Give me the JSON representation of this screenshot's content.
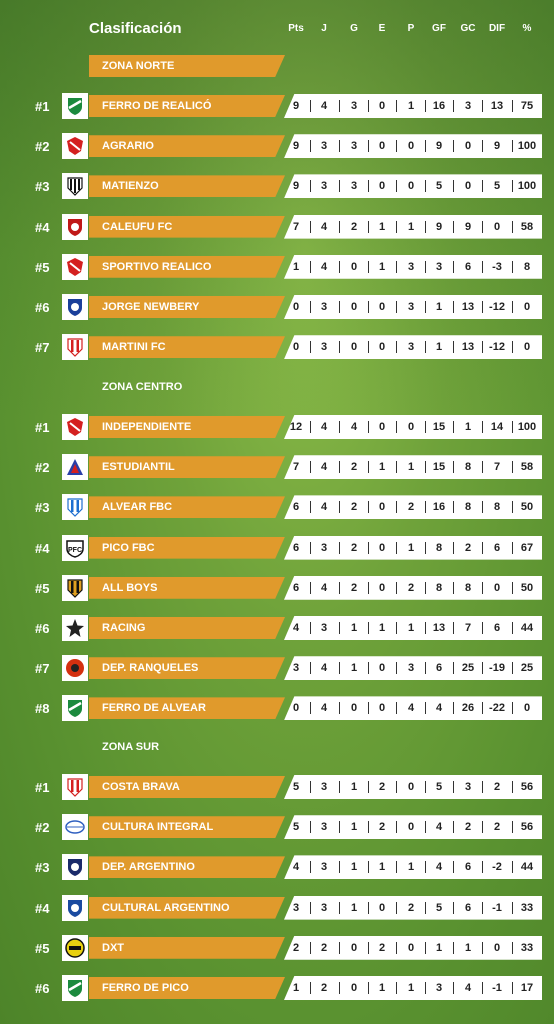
{
  "title": "Clasificación",
  "columns": [
    "Pts",
    "J",
    "G",
    "E",
    "P",
    "GF",
    "GC",
    "DIF",
    "%"
  ],
  "zones": [
    {
      "name": "ZONA NORTE",
      "teams": [
        {
          "rank": "#1",
          "name": "FERRO DE REALICÓ",
          "stats": [
            "9",
            "4",
            "3",
            "0",
            "1",
            "16",
            "3",
            "13",
            "75"
          ],
          "logo": "ferro-crest",
          "logo_color": "#1b8a3e"
        },
        {
          "rank": "#2",
          "name": "AGRARIO",
          "stats": [
            "9",
            "3",
            "3",
            "0",
            "0",
            "9",
            "0",
            "9",
            "100"
          ],
          "logo": "agrario-crest",
          "logo_color": "#d42020"
        },
        {
          "rank": "#3",
          "name": "MATIENZO",
          "stats": [
            "9",
            "3",
            "3",
            "0",
            "0",
            "5",
            "0",
            "5",
            "100"
          ],
          "logo": "matienzo-crest",
          "logo_color": "#111111"
        },
        {
          "rank": "#4",
          "name": "CALEUFU FC",
          "stats": [
            "7",
            "4",
            "2",
            "1",
            "1",
            "9",
            "9",
            "0",
            "58"
          ],
          "logo": "caleufu-crest",
          "logo_color": "#c01818"
        },
        {
          "rank": "#5",
          "name": "SPORTIVO REALICO",
          "stats": [
            "1",
            "4",
            "0",
            "1",
            "3",
            "3",
            "6",
            "-3",
            "8"
          ],
          "logo": "sportivo-crest",
          "logo_color": "#d42020"
        },
        {
          "rank": "#6",
          "name": "JORGE NEWBERY",
          "stats": [
            "0",
            "3",
            "0",
            "0",
            "3",
            "1",
            "13",
            "-12",
            "0"
          ],
          "logo": "newbery-crest",
          "logo_color": "#1a3f9a"
        },
        {
          "rank": "#7",
          "name": "MARTINI FC",
          "stats": [
            "0",
            "3",
            "0",
            "0",
            "3",
            "1",
            "13",
            "-12",
            "0"
          ],
          "logo": "martini-crest",
          "logo_color": "#d42020"
        }
      ]
    },
    {
      "name": "ZONA CENTRO",
      "teams": [
        {
          "rank": "#1",
          "name": "INDEPENDIENTE",
          "stats": [
            "12",
            "4",
            "4",
            "0",
            "0",
            "15",
            "1",
            "14",
            "100"
          ],
          "logo": "independiente-crest",
          "logo_color": "#d42020"
        },
        {
          "rank": "#2",
          "name": "ESTUDIANTIL",
          "stats": [
            "7",
            "4",
            "2",
            "1",
            "1",
            "15",
            "8",
            "7",
            "58"
          ],
          "logo": "estudiantil-crest",
          "logo_color": "#2a3fa8"
        },
        {
          "rank": "#3",
          "name": "ALVEAR FBC",
          "stats": [
            "6",
            "4",
            "2",
            "0",
            "2",
            "16",
            "8",
            "8",
            "50"
          ],
          "logo": "alvear-crest",
          "logo_color": "#1e6fd0"
        },
        {
          "rank": "#4",
          "name": "PICO FBC",
          "stats": [
            "6",
            "3",
            "2",
            "0",
            "1",
            "8",
            "2",
            "6",
            "67"
          ],
          "logo": "pico-crest",
          "logo_color": "#111111"
        },
        {
          "rank": "#5",
          "name": "ALL BOYS",
          "stats": [
            "6",
            "4",
            "2",
            "0",
            "2",
            "8",
            "8",
            "0",
            "50"
          ],
          "logo": "allboys-crest",
          "logo_color": "#e0a020"
        },
        {
          "rank": "#6",
          "name": "RACING",
          "stats": [
            "4",
            "3",
            "1",
            "1",
            "1",
            "13",
            "7",
            "6",
            "44"
          ],
          "logo": "racing-star",
          "logo_color": "#222222"
        },
        {
          "rank": "#7",
          "name": "DEP. RANQUELES",
          "stats": [
            "3",
            "4",
            "1",
            "0",
            "3",
            "6",
            "25",
            "-19",
            "25"
          ],
          "logo": "ranqueles-crest",
          "logo_color": "#d43010"
        },
        {
          "rank": "#8",
          "name": "FERRO DE ALVEAR",
          "stats": [
            "0",
            "4",
            "0",
            "0",
            "4",
            "4",
            "26",
            "-22",
            "0"
          ],
          "logo": "ferroalvear-crest",
          "logo_color": "#1b8a3e"
        }
      ]
    },
    {
      "name": "ZONA SUR",
      "teams": [
        {
          "rank": "#1",
          "name": "COSTA BRAVA",
          "stats": [
            "5",
            "3",
            "1",
            "2",
            "0",
            "5",
            "3",
            "2",
            "56"
          ],
          "logo": "costabrava-crest",
          "logo_color": "#d42020"
        },
        {
          "rank": "#2",
          "name": "CULTURA INTEGRAL",
          "stats": [
            "5",
            "3",
            "1",
            "2",
            "0",
            "4",
            "2",
            "2",
            "56"
          ],
          "logo": "cultura-crest",
          "logo_color": "#3060c0"
        },
        {
          "rank": "#3",
          "name": "DEP. ARGENTINO",
          "stats": [
            "4",
            "3",
            "1",
            "1",
            "1",
            "4",
            "6",
            "-2",
            "44"
          ],
          "logo": "depargentino-crest",
          "logo_color": "#1a2a6a"
        },
        {
          "rank": "#4",
          "name": "CULTURAL ARGENTINO",
          "stats": [
            "3",
            "3",
            "1",
            "0",
            "2",
            "5",
            "6",
            "-1",
            "33"
          ],
          "logo": "cultural-crest",
          "logo_color": "#1a4aa0"
        },
        {
          "rank": "#5",
          "name": "DXT",
          "stats": [
            "2",
            "2",
            "0",
            "2",
            "0",
            "1",
            "1",
            "0",
            "33"
          ],
          "logo": "dxt-crest",
          "logo_color": "#e8d010"
        },
        {
          "rank": "#6",
          "name": "FERRO DE PICO",
          "stats": [
            "1",
            "2",
            "0",
            "1",
            "1",
            "3",
            "4",
            "-1",
            "17"
          ],
          "logo": "ferropico-crest",
          "logo_color": "#1b8a3e"
        }
      ]
    }
  ]
}
